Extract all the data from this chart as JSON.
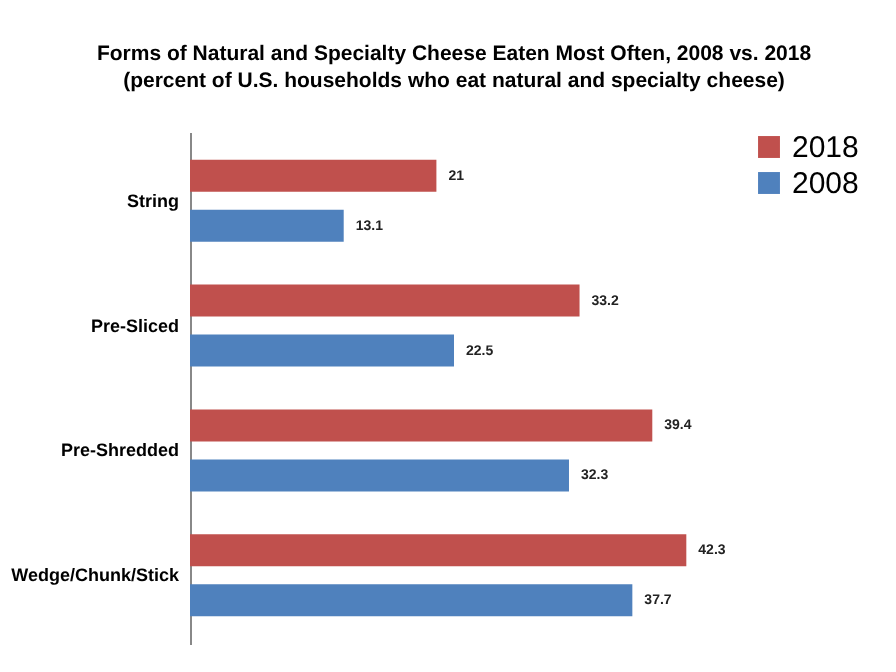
{
  "chart_data": {
    "type": "bar",
    "orientation": "horizontal",
    "title": "Forms of Natural and Specialty Cheese Eaten Most Often, 2008 vs. 2018",
    "subtitle": "(percent of U.S. households who eat natural and specialty cheese)",
    "categories": [
      "String",
      "Pre-Sliced",
      "Pre-Shredded",
      "Wedge/Chunk/Stick"
    ],
    "series": [
      {
        "name": "2018",
        "color": "#c0504d",
        "values": [
          21,
          33.2,
          39.4,
          42.3
        ]
      },
      {
        "name": "2008",
        "color": "#4f81bd",
        "values": [
          13.1,
          22.5,
          32.3,
          37.7
        ]
      }
    ],
    "data_labels": true,
    "legend": "right",
    "grid": false
  }
}
